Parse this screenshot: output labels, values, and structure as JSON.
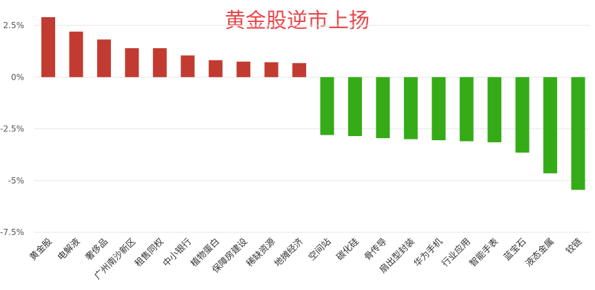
{
  "chart_data": {
    "type": "bar",
    "title": "黄金股逆市上扬",
    "xlabel": "",
    "ylabel": "",
    "ylim": [
      -7.5,
      2.5
    ],
    "yticks": [
      "2.5%",
      "0%",
      "-2.5%",
      "-5%",
      "-7.5%"
    ],
    "ytick_values": [
      2.5,
      0,
      -2.5,
      -5,
      -7.5
    ],
    "grid": true,
    "categories": [
      "黄金股",
      "电解液",
      "奢侈品",
      "广州南沙新区",
      "租售同权",
      "中小银行",
      "植物蛋白",
      "保障房建设",
      "稀缺资源",
      "地摊经济",
      "空间站",
      "碳化硅",
      "骨传导",
      "扇出型封装",
      "华为手机",
      "行业应用",
      "智能手表",
      "蓝宝石",
      "液态金属",
      "铰链"
    ],
    "values": [
      2.9,
      2.2,
      1.82,
      1.4,
      1.4,
      1.05,
      0.82,
      0.75,
      0.72,
      0.68,
      -2.8,
      -2.85,
      -2.95,
      -3.0,
      -3.05,
      -3.1,
      -3.15,
      -3.65,
      -4.65,
      -5.45
    ],
    "colors": {
      "positive": "#c23b31",
      "negative": "#35ab18"
    }
  }
}
